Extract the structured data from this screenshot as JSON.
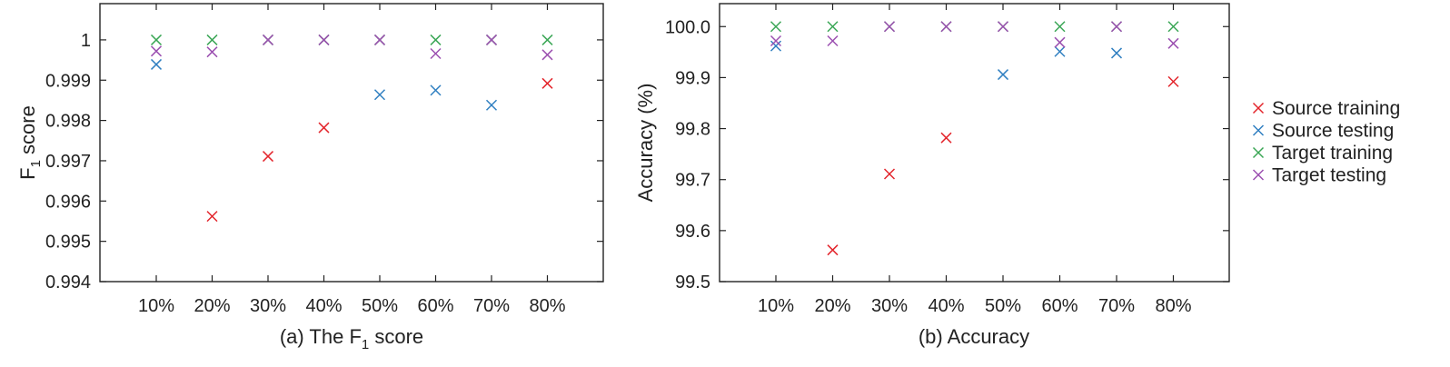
{
  "chart_data": [
    {
      "type": "scatter",
      "categories": [
        "10%",
        "20%",
        "30%",
        "40%",
        "50%",
        "60%",
        "70%",
        "80%"
      ],
      "ylabel": "F",
      "ylabel_sub": "1",
      "ylabel_rest": " score",
      "caption": "(a) The F",
      "caption_sub": "1",
      "caption_rest": " score",
      "ylim": [
        0.994,
        1.0009
      ],
      "yticks": [
        0.994,
        0.995,
        0.996,
        0.997,
        0.998,
        0.999,
        1
      ],
      "ytick_labels": [
        "0.994",
        "0.995",
        "0.996",
        "0.997",
        "0.998",
        "0.999",
        "1"
      ],
      "series": [
        {
          "name": "Source training",
          "values": [
            null,
            0.99562,
            0.99711,
            0.99782,
            null,
            null,
            null,
            0.99892
          ]
        },
        {
          "name": "Source testing",
          "values": [
            0.99939,
            null,
            null,
            null,
            0.99864,
            0.99875,
            0.99838,
            null
          ]
        },
        {
          "name": "Target training",
          "values": [
            1.0,
            1.0,
            1.0,
            1.0,
            1.0,
            1.0,
            1.0,
            1.0
          ]
        },
        {
          "name": "Target testing",
          "values": [
            0.99972,
            0.9997,
            1.0,
            1.0,
            1.0,
            0.99966,
            1.0,
            0.99963
          ]
        }
      ]
    },
    {
      "type": "scatter",
      "categories": [
        "10%",
        "20%",
        "30%",
        "40%",
        "50%",
        "60%",
        "70%",
        "80%"
      ],
      "ylabel": "Accuracy (%)",
      "caption": "(b) Accuracy",
      "ylim": [
        99.5,
        100.045
      ],
      "yticks": [
        99.5,
        99.6,
        99.7,
        99.8,
        99.9,
        100
      ],
      "ytick_labels": [
        "99.5",
        "99.6",
        "99.7",
        "99.8",
        "99.9",
        "100.0"
      ],
      "series": [
        {
          "name": "Source training",
          "values": [
            null,
            99.562,
            99.711,
            99.782,
            null,
            null,
            null,
            99.892
          ]
        },
        {
          "name": "Source testing",
          "values": [
            99.962,
            null,
            null,
            null,
            99.906,
            99.951,
            99.948,
            null
          ]
        },
        {
          "name": "Target training",
          "values": [
            100.0,
            100.0,
            100.0,
            100.0,
            100.0,
            100.0,
            100.0,
            100.0
          ]
        },
        {
          "name": "Target testing",
          "values": [
            99.972,
            99.972,
            100.0,
            100.0,
            100.0,
            99.969,
            100.0,
            99.967
          ]
        }
      ]
    }
  ],
  "legend": {
    "placement": "right",
    "entries": [
      {
        "label": "Source training",
        "color": "#e3242b"
      },
      {
        "label": "Source testing",
        "color": "#2f7fc1"
      },
      {
        "label": "Target training",
        "color": "#3aa655"
      },
      {
        "label": "Target testing",
        "color": "#9b4fb0"
      }
    ]
  }
}
